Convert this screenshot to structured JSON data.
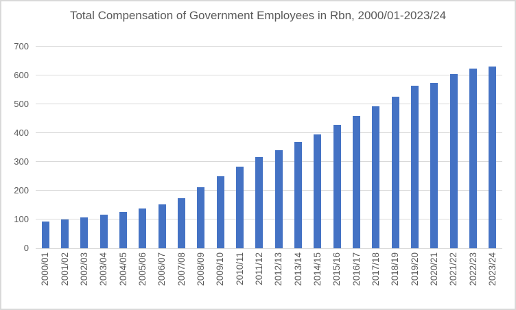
{
  "chart_data": {
    "type": "bar",
    "title": "Total Compensation of Government Employees in Rbn, 2000/01-2023/24",
    "xlabel": "",
    "ylabel": "",
    "categories": [
      "2000/01",
      "2001/02",
      "2002/03",
      "2003/04",
      "2004/05",
      "2005/06",
      "2006/07",
      "2007/08",
      "2008/09",
      "2009/10",
      "2010/11",
      "2011/12",
      "2012/13",
      "2013/14",
      "2014/15",
      "2015/16",
      "2016/17",
      "2017/18",
      "2018/19",
      "2019/20",
      "2020/21",
      "2021/22",
      "2022/23",
      "2023/24"
    ],
    "values": [
      93,
      99,
      108,
      117,
      126,
      138,
      152,
      174,
      211,
      250,
      284,
      317,
      341,
      370,
      396,
      428,
      459,
      492,
      527,
      565,
      574,
      605,
      624,
      631
    ],
    "ylim": [
      0,
      700
    ],
    "yticks": [
      0,
      100,
      200,
      300,
      400,
      500,
      600,
      700
    ],
    "grid": true,
    "legend_position": "none",
    "colors": {
      "bar": "#4472C4",
      "gridline": "#D9D9D9",
      "axis_line": "#D9D9D9",
      "tick_label": "#595959",
      "title": "#595959",
      "background": "#FFFFFF",
      "border": "#D9D9D9"
    }
  }
}
